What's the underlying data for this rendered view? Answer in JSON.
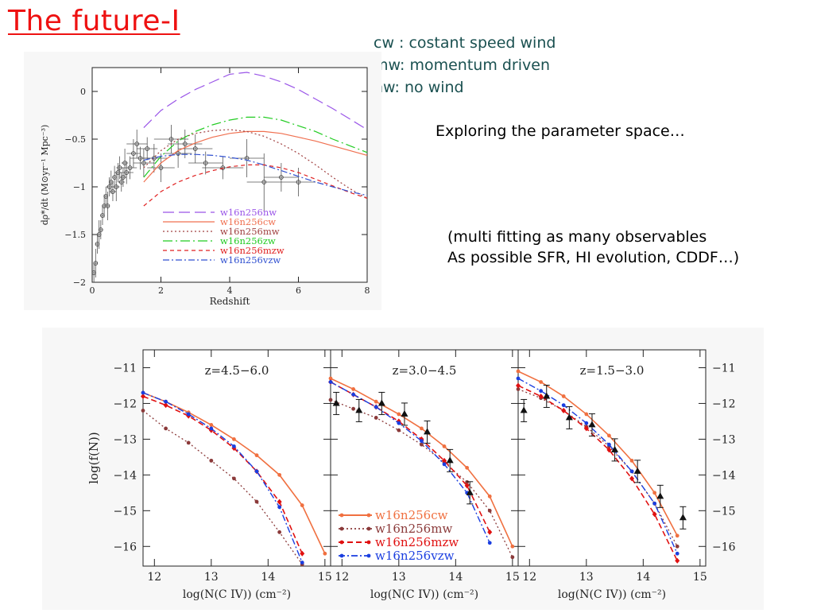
{
  "slide": {
    "title": "The future-I",
    "definitions": [
      "cw : costant speed wind",
      "mw: momentum driven",
      "nw: no wind"
    ],
    "note1": "Exploring the parameter space…",
    "note2": [
      "(multi fitting as many observables",
      "As possible SFR, HI evolution, CDDF…)"
    ]
  },
  "chart_data": [
    {
      "type": "line",
      "xlabel": "Redshift",
      "ylabel": "dρ*/dt (M⊙yr⁻¹ Mpc⁻³)",
      "xlim": [
        0,
        8
      ],
      "ylim": [
        -2,
        0.25
      ],
      "xticks": [
        0,
        2,
        4,
        6,
        8
      ],
      "yticks": [
        0,
        -0.5,
        -1,
        -1.5,
        -2
      ],
      "xtick_labels": [
        "0",
        "2",
        "4",
        "6",
        "8"
      ],
      "ytick_labels": [
        "0",
        "−0.5",
        "−1",
        "−1.5",
        "−2"
      ],
      "legend_position": "lower-center",
      "series": [
        {
          "name": "w16n256nw",
          "color": "#9a55e8",
          "dash": "14,6",
          "x": [
            1.5,
            2,
            2.5,
            3,
            3.5,
            4,
            4.5,
            5,
            5.5,
            6,
            6.5,
            7,
            7.5,
            8
          ],
          "y": [
            -0.38,
            -0.2,
            -0.08,
            0.02,
            0.1,
            0.18,
            0.2,
            0.16,
            0.1,
            0.02,
            -0.08,
            -0.18,
            -0.29,
            -0.4
          ]
        },
        {
          "name": "w16n256cw",
          "color": "#f07050",
          "dash": "none",
          "x": [
            1.5,
            2,
            2.5,
            3,
            3.5,
            4,
            4.5,
            5,
            5.5,
            6,
            6.5,
            7,
            7.5,
            8
          ],
          "y": [
            -0.95,
            -0.75,
            -0.62,
            -0.54,
            -0.48,
            -0.44,
            -0.42,
            -0.42,
            -0.44,
            -0.48,
            -0.52,
            -0.57,
            -0.62,
            -0.67
          ]
        },
        {
          "name": "w16n256mw",
          "color": "#a04040",
          "dash": "2,3",
          "x": [
            1.5,
            2,
            2.5,
            3,
            3.5,
            4,
            4.5,
            5,
            5.5,
            6,
            6.5,
            7,
            7.5,
            8
          ],
          "y": [
            -0.8,
            -0.62,
            -0.5,
            -0.44,
            -0.41,
            -0.4,
            -0.42,
            -0.47,
            -0.55,
            -0.65,
            -0.77,
            -0.9,
            -1.02,
            -1.12
          ]
        },
        {
          "name": "w16n256zw",
          "color": "#22cc22",
          "dash": "12,4,2,4",
          "x": [
            1.5,
            2,
            2.5,
            3,
            3.5,
            4,
            4.5,
            5,
            5.5,
            6,
            6.5,
            7,
            7.5,
            8
          ],
          "y": [
            -0.9,
            -0.68,
            -0.52,
            -0.42,
            -0.35,
            -0.3,
            -0.27,
            -0.27,
            -0.3,
            -0.36,
            -0.42,
            -0.5,
            -0.57,
            -0.64
          ]
        },
        {
          "name": "w16n256mzw",
          "color": "#e02020",
          "dash": "5,4",
          "x": [
            1.5,
            2,
            2.5,
            3,
            3.5,
            4,
            4.5,
            5,
            5.5,
            6,
            6.5,
            7,
            7.5,
            8
          ],
          "y": [
            -1.2,
            -1.05,
            -0.95,
            -0.88,
            -0.83,
            -0.79,
            -0.77,
            -0.77,
            -0.8,
            -0.85,
            -0.92,
            -0.99,
            -1.06,
            -1.12
          ]
        },
        {
          "name": "w16n256vzw",
          "color": "#3050d0",
          "dash": "8,3,2,3",
          "x": [
            1.5,
            2,
            2.5,
            3,
            3.5,
            4,
            4.5,
            5,
            5.5,
            6,
            6.5,
            7,
            7.5,
            8
          ],
          "y": [
            -0.72,
            -0.68,
            -0.66,
            -0.66,
            -0.67,
            -0.69,
            -0.72,
            -0.77,
            -0.83,
            -0.89,
            -0.95,
            -1.0,
            -1.05,
            -1.09
          ]
        }
      ],
      "observations": {
        "x": [
          0.05,
          0.1,
          0.15,
          0.2,
          0.25,
          0.3,
          0.35,
          0.4,
          0.45,
          0.5,
          0.55,
          0.6,
          0.65,
          0.7,
          0.75,
          0.8,
          0.85,
          0.9,
          0.95,
          1.0,
          1.1,
          1.2,
          1.3,
          1.4,
          1.5,
          1.6,
          1.8,
          2.0,
          2.3,
          2.5,
          2.7,
          3.0,
          3.3,
          3.8,
          4.5,
          5.0,
          5.5,
          6.0
        ],
        "y": [
          -1.9,
          -1.8,
          -1.6,
          -1.5,
          -1.45,
          -1.3,
          -1.2,
          -1.1,
          -1.2,
          -1.0,
          -0.95,
          -1.05,
          -0.9,
          -1.0,
          -0.85,
          -0.8,
          -0.95,
          -0.9,
          -0.75,
          -0.85,
          -0.8,
          -0.65,
          -0.55,
          -0.7,
          -0.75,
          -0.6,
          -0.7,
          -0.8,
          -0.5,
          -0.65,
          -0.55,
          -0.6,
          -0.75,
          -0.8,
          -0.7,
          -0.95,
          -0.9,
          -0.95
        ],
        "yerr": [
          0.1,
          0.15,
          0.1,
          0.15,
          0.1,
          0.1,
          0.12,
          0.1,
          0.15,
          0.1,
          0.12,
          0.1,
          0.12,
          0.15,
          0.1,
          0.12,
          0.1,
          0.1,
          0.15,
          0.12,
          0.12,
          0.15,
          0.15,
          0.12,
          0.15,
          0.12,
          0.15,
          0.15,
          0.15,
          0.15,
          0.15,
          0.15,
          0.12,
          0.12,
          0.2,
          0.3,
          0.15,
          0.15
        ],
        "xerr": [
          0.05,
          0.05,
          0.05,
          0.05,
          0.05,
          0.05,
          0.05,
          0.05,
          0.05,
          0.1,
          0.05,
          0.1,
          0.05,
          0.1,
          0.1,
          0.1,
          0.1,
          0.1,
          0.1,
          0.2,
          0.2,
          0.2,
          0.3,
          0.3,
          0.3,
          0.3,
          0.4,
          0.4,
          0.5,
          0.4,
          0.5,
          0.5,
          0.5,
          0.6,
          0.5,
          0.5,
          0.5,
          0.5
        ]
      }
    },
    {
      "type": "line",
      "xlabel": "log(N(C IV)) (cm⁻²)",
      "ylabel": "log(f(N))",
      "xlim": [
        11.8,
        15.1
      ],
      "ylim": [
        -16.55,
        -10.5
      ],
      "xticks": [
        12,
        13,
        14,
        15
      ],
      "xtick_labels": [
        "12",
        "13",
        "14",
        "15"
      ],
      "yticks": [
        -11,
        -12,
        -13,
        -14,
        -15,
        -16
      ],
      "ytick_labels": [
        "−11",
        "−12",
        "−13",
        "−14",
        "−15",
        "−16"
      ],
      "legend_position": "lower-left (middle panel)",
      "legend": [
        {
          "name": "w16n256cw",
          "color": "#f07040"
        },
        {
          "name": "w16n256mw",
          "color": "#8b3a3a"
        },
        {
          "name": "w16n256mzw",
          "color": "#e01010"
        },
        {
          "name": "w16n256vzw",
          "color": "#1a3ee0"
        }
      ],
      "panels": [
        {
          "label": "z=4.5−6.0",
          "series": [
            {
              "name": "w16n256cw",
              "x": [
                11.8,
                12.2,
                12.6,
                13.0,
                13.4,
                13.8,
                14.2,
                14.6,
                15.0
              ],
              "y": [
                -11.7,
                -11.95,
                -12.25,
                -12.6,
                -13.0,
                -13.45,
                -14.0,
                -14.85,
                -16.2
              ]
            },
            {
              "name": "w16n256mw",
              "x": [
                11.8,
                12.2,
                12.6,
                13.0,
                13.4,
                13.8,
                14.2,
                14.6
              ],
              "y": [
                -12.2,
                -12.7,
                -13.1,
                -13.6,
                -14.1,
                -14.75,
                -15.6,
                -16.5
              ]
            },
            {
              "name": "w16n256mzw",
              "x": [
                11.8,
                12.2,
                12.6,
                13.0,
                13.4,
                13.8,
                14.2,
                14.6
              ],
              "y": [
                -11.8,
                -12.05,
                -12.35,
                -12.75,
                -13.25,
                -13.9,
                -14.75,
                -16.2
              ]
            },
            {
              "name": "w16n256vzw",
              "x": [
                11.8,
                12.2,
                12.6,
                13.0,
                13.4,
                13.8,
                14.2,
                14.6
              ],
              "y": [
                -11.7,
                -11.95,
                -12.3,
                -12.7,
                -13.2,
                -13.9,
                -14.9,
                -16.45
              ]
            }
          ],
          "observations": {
            "x": [],
            "y": []
          }
        },
        {
          "label": "z=3.0−4.5",
          "series": [
            {
              "name": "w16n256cw",
              "x": [
                11.8,
                12.2,
                12.6,
                13.0,
                13.4,
                13.8,
                14.2,
                14.6,
                15.0
              ],
              "y": [
                -11.3,
                -11.6,
                -11.95,
                -12.3,
                -12.7,
                -13.2,
                -13.8,
                -14.6,
                -16.0
              ]
            },
            {
              "name": "w16n256mw",
              "x": [
                11.8,
                12.2,
                12.6,
                13.0,
                13.4,
                13.8,
                14.2,
                14.6,
                15.0
              ],
              "y": [
                -11.9,
                -12.15,
                -12.4,
                -12.75,
                -13.15,
                -13.65,
                -14.2,
                -15.0,
                -16.3
              ]
            },
            {
              "name": "w16n256mzw",
              "x": [
                11.8,
                12.2,
                12.6,
                13.0,
                13.4,
                13.8,
                14.2,
                14.6
              ],
              "y": [
                -11.4,
                -11.75,
                -12.1,
                -12.5,
                -13.0,
                -13.6,
                -14.3,
                -15.6
              ]
            },
            {
              "name": "w16n256vzw",
              "x": [
                11.8,
                12.2,
                12.6,
                13.0,
                13.4,
                13.8,
                14.2,
                14.6
              ],
              "y": [
                -11.4,
                -11.75,
                -12.1,
                -12.55,
                -13.05,
                -13.7,
                -14.5,
                -15.9
              ]
            }
          ],
          "observations": {
            "x": [
              11.9,
              12.3,
              12.7,
              13.1,
              13.5,
              13.9,
              14.25
            ],
            "y": [
              -12.0,
              -12.2,
              -12.0,
              -12.3,
              -12.8,
              -13.6,
              -14.5
            ]
          }
        },
        {
          "label": "z=1.5−3.0",
          "series": [
            {
              "name": "w16n256cw",
              "x": [
                11.8,
                12.2,
                12.6,
                13.0,
                13.4,
                13.8,
                14.2,
                14.6
              ],
              "y": [
                -11.1,
                -11.4,
                -11.8,
                -12.3,
                -12.9,
                -13.6,
                -14.5,
                -15.7
              ]
            },
            {
              "name": "w16n256mw",
              "x": [
                11.8,
                12.2,
                12.6,
                13.0,
                13.4,
                13.8,
                14.2,
                14.6
              ],
              "y": [
                -11.6,
                -11.85,
                -12.2,
                -12.65,
                -13.2,
                -13.9,
                -14.8,
                -16.0
              ]
            },
            {
              "name": "w16n256mzw",
              "x": [
                11.8,
                12.2,
                12.6,
                13.0,
                13.4,
                13.8,
                14.2,
                14.6
              ],
              "y": [
                -11.5,
                -11.8,
                -12.2,
                -12.7,
                -13.3,
                -14.1,
                -15.1,
                -16.4
              ]
            },
            {
              "name": "w16n256vzw",
              "x": [
                11.8,
                12.2,
                12.6,
                13.0,
                13.4,
                13.8,
                14.2,
                14.6
              ],
              "y": [
                -11.3,
                -11.65,
                -12.05,
                -12.55,
                -13.15,
                -13.9,
                -14.8,
                -16.2
              ]
            }
          ],
          "observations": {
            "x": [
              11.9,
              12.3,
              12.7,
              13.1,
              13.5,
              13.9,
              14.3,
              14.7
            ],
            "y": [
              -12.2,
              -11.8,
              -12.4,
              -12.6,
              -13.3,
              -13.9,
              -14.6,
              -15.2
            ]
          }
        }
      ]
    }
  ]
}
